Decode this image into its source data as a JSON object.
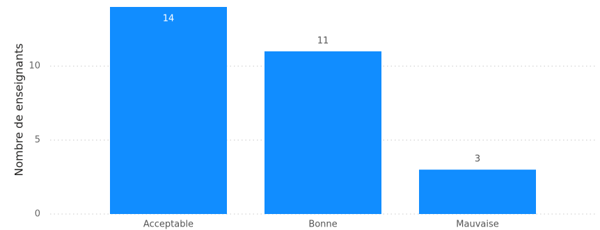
{
  "chart_data": {
    "type": "bar",
    "categories": [
      "Acceptable",
      "Bonne",
      "Mauvaise"
    ],
    "values": [
      14,
      11,
      3
    ],
    "data_labels": [
      "14",
      "11",
      "3"
    ],
    "title": "",
    "xlabel": "",
    "ylabel": "Nombre de enseignants",
    "ylim": [
      0,
      14
    ],
    "yticks": [
      0,
      5,
      10
    ],
    "ytick_labels": [
      "0",
      "5",
      "10"
    ],
    "grid": "horizontal dotted",
    "bar_color": "#118DFF",
    "gridline_color": "#C8C8C8",
    "label_inside_color": "#FFFFFF",
    "label_outside_color": "#555555"
  }
}
